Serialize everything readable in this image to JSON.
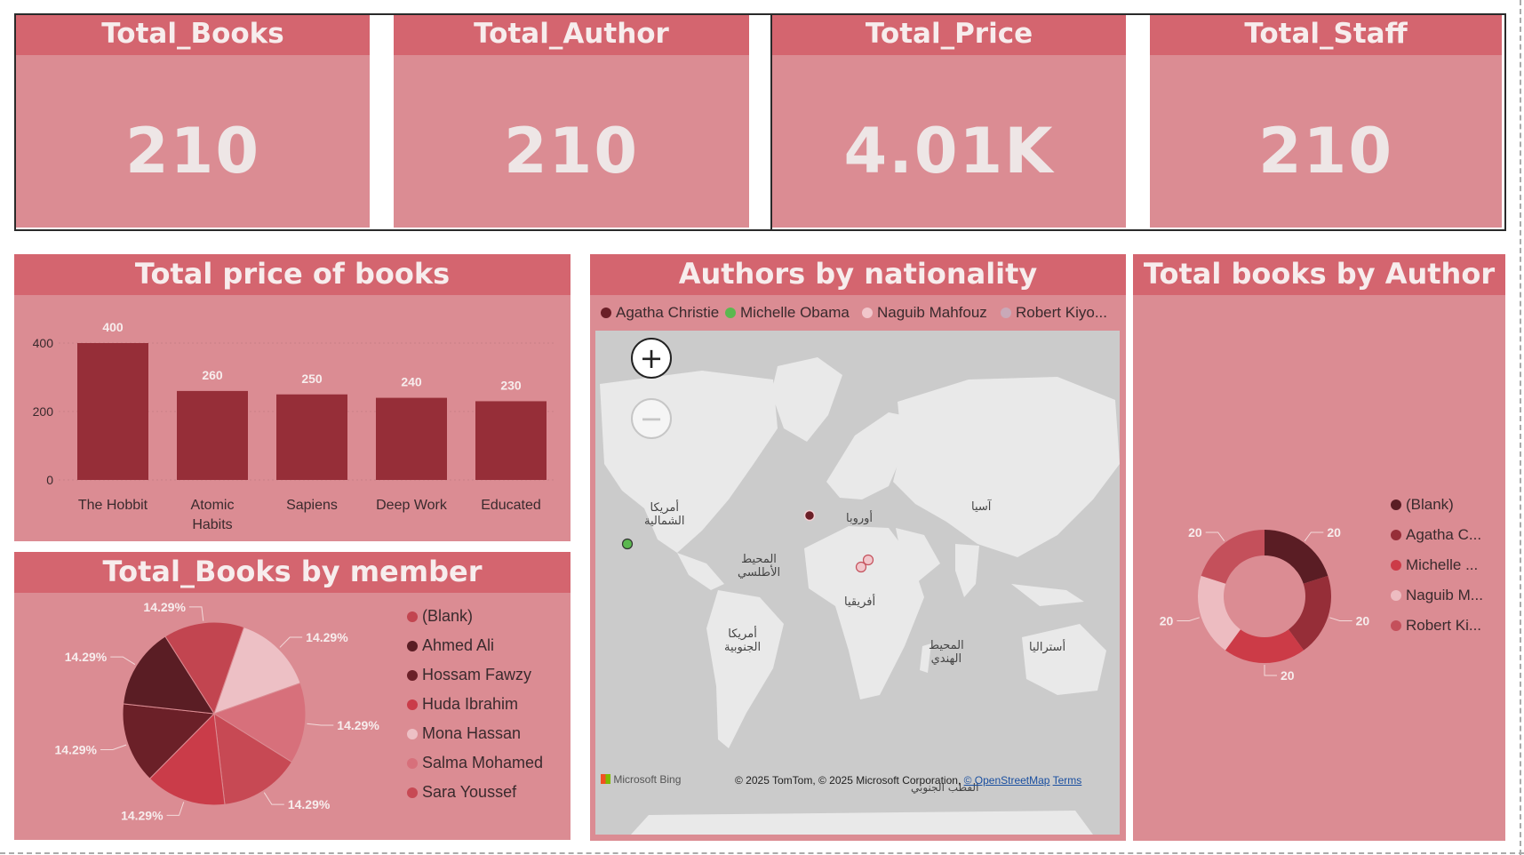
{
  "kpis": [
    {
      "title": "Total_Books",
      "value": "210"
    },
    {
      "title": "Total_Author",
      "value": "210"
    },
    {
      "title": "Total_Price",
      "value": "4.01K"
    },
    {
      "title": "Total_Staff",
      "value": "210"
    }
  ],
  "colors": {
    "panel_bg": "#db8c93",
    "header_bg": "#d4656f",
    "bar": "#962e38",
    "map_bg": "#cbcbcb"
  },
  "price_chart": {
    "title": "Total price of books"
  },
  "member_chart": {
    "title": "Total_Books by member"
  },
  "nationality_map": {
    "title": "Authors by nationality",
    "legend": [
      {
        "label": "Agatha Christie",
        "color": "#6b1f27"
      },
      {
        "label": "Michelle Obama",
        "color": "#5bb84f"
      },
      {
        "label": "Naguib Mahfouz",
        "color": "#f1c6cb"
      },
      {
        "label": "Robert Kiyo...",
        "color": "#c9a9b8"
      }
    ],
    "zoom_in_icon": "plus-icon",
    "zoom_out_icon": "minus-icon",
    "labels": {
      "north_america": "أمريكا\nالشمالية",
      "europe": "أوروبا",
      "asia": "آسيا",
      "atlantic": "المحيط\nالأطلسي",
      "africa": "أفريقيا",
      "south_america": "أمريكا\nالجنوبية",
      "indian_ocean": "المحيط\nالهندي",
      "australia": "أستراليا",
      "south_pole": "القطب الجنوبي"
    },
    "credit_text": "© 2025 TomTom, © 2025 Microsoft Corporation,",
    "credit_osm": "© OpenStreetMap",
    "credit_terms": "Terms",
    "bing_logo": "Microsoft Bing"
  },
  "author_chart": {
    "title": "Total books by Author"
  },
  "chart_data": [
    {
      "type": "bar",
      "title": "Total price of books",
      "categories": [
        "The Hobbit",
        "Atomic Habits",
        "Sapiens",
        "Deep Work",
        "Educated"
      ],
      "values": [
        400,
        260,
        250,
        240,
        230
      ],
      "yticks": [
        0,
        200,
        400
      ],
      "ylim": [
        0,
        400
      ],
      "grid": true
    },
    {
      "type": "pie",
      "title": "Total_Books by member",
      "legend_position": "right",
      "slices": [
        {
          "label": "(Blank)",
          "value": 14.29,
          "text": "14.29%",
          "color": "#c24550"
        },
        {
          "label": "Ahmed Ali",
          "value": 14.29,
          "text": "14.29%",
          "color": "#5a1d24"
        },
        {
          "label": "Hossam Fawzy",
          "value": 14.29,
          "text": "14.29%",
          "color": "#6b2028"
        },
        {
          "label": "Huda Ibrahim",
          "value": 14.29,
          "text": "14.29%",
          "color": "#ca3c49"
        },
        {
          "label": "Mona Hassan",
          "value": 14.29,
          "text": "14.29%",
          "color": "#edc0c5"
        },
        {
          "label": "Salma Mohamed",
          "value": 14.29,
          "text": "14.29%",
          "color": "#d7707b"
        },
        {
          "label": "Sara Youssef",
          "value": 14.29,
          "text": "14.29%",
          "color": "#c74954"
        }
      ]
    },
    {
      "type": "pie",
      "subtype": "donut",
      "title": "Total books by Author",
      "legend_position": "right",
      "slices": [
        {
          "label": "(Blank)",
          "value": 20,
          "color": "#5a1d24"
        },
        {
          "label": "Agatha C...",
          "value": 20,
          "color": "#962e38"
        },
        {
          "label": "Michelle ...",
          "value": 20,
          "color": "#cc3b47"
        },
        {
          "label": "Naguib M...",
          "value": 20,
          "color": "#edbcc1"
        },
        {
          "label": "Robert Ki...",
          "value": 20,
          "color": "#c4505b"
        }
      ]
    }
  ]
}
